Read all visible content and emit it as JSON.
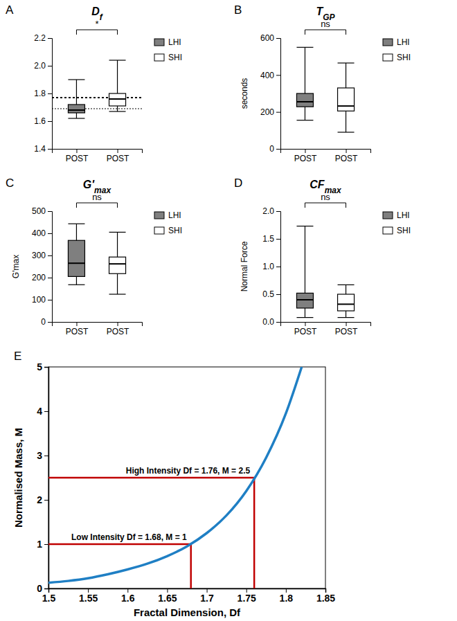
{
  "chart_data": [
    {
      "type": "box",
      "panel_label": "A",
      "title": "D",
      "title_subscript": "f",
      "categories": [
        "POST",
        "POST"
      ],
      "ylim": [
        1.4,
        2.2
      ],
      "yticks": [
        1.4,
        1.6,
        1.8,
        {
          "value": 2,
          "label": "2.0"
        },
        2.2
      ],
      "legend": "right",
      "significance": "*",
      "reference_lines": [
        1.77,
        1.69
      ],
      "series": [
        {
          "name": "LHI",
          "color": "#7f7f7f",
          "min": 1.62,
          "q1": 1.66,
          "median": 1.68,
          "q3": 1.72,
          "max": 1.9
        },
        {
          "name": "SHI",
          "color": "#ffffff",
          "min": 1.67,
          "q1": 1.71,
          "median": 1.76,
          "q3": 1.8,
          "max": 2.04
        }
      ]
    },
    {
      "type": "box",
      "panel_label": "B",
      "title": "T",
      "title_subscript": "GP",
      "y_label": "seconds",
      "categories": [
        "POST",
        "POST"
      ],
      "ylim": [
        0,
        600
      ],
      "yticks": [
        0,
        200,
        400,
        600
      ],
      "legend": "right",
      "significance": "ns",
      "series": [
        {
          "name": "LHI",
          "color": "#7f7f7f",
          "min": 155,
          "q1": 228,
          "median": 255,
          "q3": 300,
          "max": 550
        },
        {
          "name": "SHI",
          "color": "#ffffff",
          "min": 90,
          "q1": 205,
          "median": 232,
          "q3": 330,
          "max": 465
        }
      ]
    },
    {
      "type": "box",
      "panel_label": "C",
      "title": "G'",
      "title_subscript": "max",
      "y_label": "G'max",
      "categories": [
        "POST",
        "POST"
      ],
      "ylim": [
        0,
        500
      ],
      "yticks": [
        0,
        100,
        200,
        300,
        400,
        500
      ],
      "legend": "right",
      "significance": "ns",
      "series": [
        {
          "name": "LHI",
          "color": "#7f7f7f",
          "min": 168,
          "q1": 205,
          "median": 265,
          "q3": 368,
          "max": 443
        },
        {
          "name": "SHI",
          "color": "#ffffff",
          "min": 125,
          "q1": 218,
          "median": 262,
          "q3": 293,
          "max": 405
        }
      ]
    },
    {
      "type": "box",
      "panel_label": "D",
      "title": "CF",
      "title_subscript": "max",
      "y_label": "Normal Force",
      "categories": [
        "POST",
        "POST"
      ],
      "ylim": [
        0,
        2
      ],
      "yticks": [
        {
          "value": 0,
          "label": "0.0"
        },
        0.5,
        {
          "value": 1,
          "label": "1.0"
        },
        1.5,
        {
          "value": 2,
          "label": "2.0"
        }
      ],
      "legend": "right",
      "significance": "ns",
      "series": [
        {
          "name": "LHI",
          "color": "#7f7f7f",
          "min": 0.08,
          "q1": 0.25,
          "median": 0.4,
          "q3": 0.52,
          "max": 1.73
        },
        {
          "name": "SHI",
          "color": "#ffffff",
          "min": 0.08,
          "q1": 0.2,
          "median": 0.32,
          "q3": 0.5,
          "max": 0.67
        }
      ]
    },
    {
      "type": "line",
      "panel_label": "E",
      "x_label": "Fractal Dimension, Df",
      "y_label": "Normalised Mass, M",
      "xlim": [
        1.5,
        1.85
      ],
      "ylim": [
        0,
        5
      ],
      "xticks": [
        1.5,
        1.55,
        1.6,
        1.65,
        1.7,
        1.75,
        1.8,
        1.85
      ],
      "yticks": [
        0,
        1,
        2,
        3,
        4,
        5
      ],
      "x": [
        1.5,
        1.525,
        1.55,
        1.575,
        1.6,
        1.625,
        1.65,
        1.675,
        1.7,
        1.725,
        1.75,
        1.775,
        1.8,
        1.82
      ],
      "series": [
        {
          "color": "#1f7fc4",
          "values": [
            0.13,
            0.17,
            0.23,
            0.32,
            0.43,
            0.56,
            0.73,
            0.95,
            1.25,
            1.65,
            2.2,
            2.95,
            3.95,
            5.0
          ]
        }
      ],
      "annotations": [
        {
          "text": "High Intensity Df = 1.76, M = 2.5",
          "x": 1.76,
          "y": 2.5,
          "color": "#c00000"
        },
        {
          "text": "Low Intensity Df = 1.68, M = 1",
          "x": 1.68,
          "y": 1,
          "color": "#c00000"
        }
      ]
    }
  ]
}
